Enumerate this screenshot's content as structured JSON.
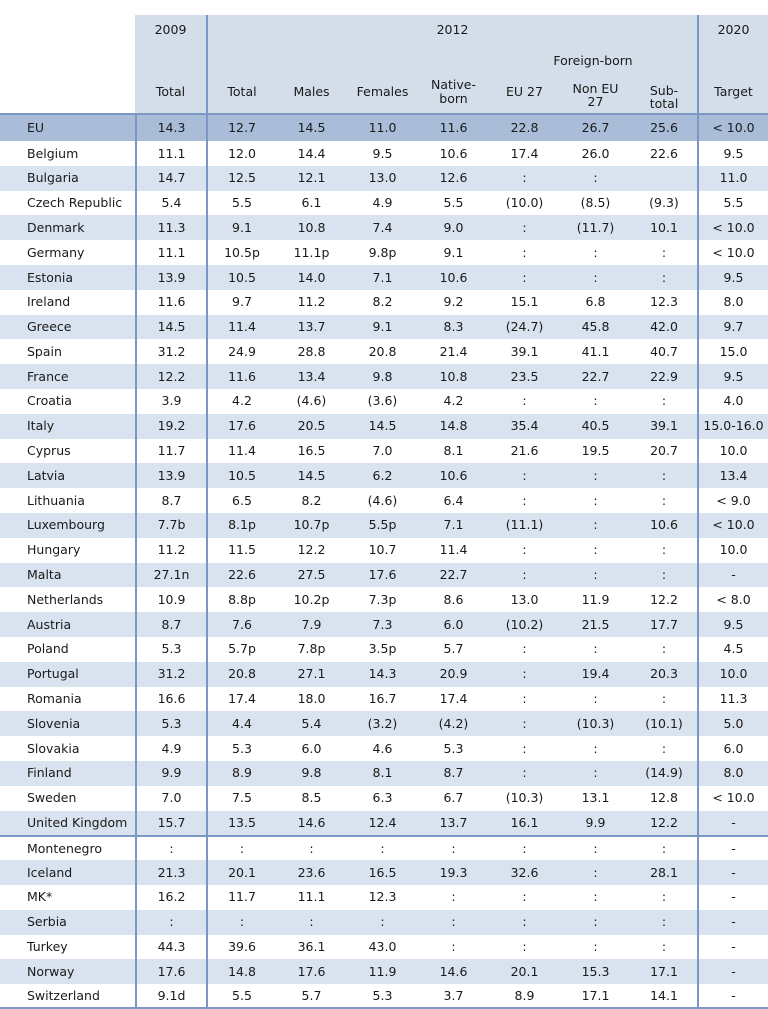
{
  "headers": {
    "year_2009": "2009",
    "year_2012": "2012",
    "year_2020": "2020",
    "foreign_born": "Foreign-born",
    "cols": [
      "Total",
      "Total",
      "Males",
      "Females",
      "Native-\nborn",
      "EU 27",
      "Non EU\n27",
      "Sub-\ntotal",
      "Target"
    ]
  },
  "rows": [
    {
      "country": "EU",
      "v": [
        "14.3",
        "12.7",
        "14.5",
        "11.0",
        "11.6",
        "22.8",
        "26.7",
        "25.6",
        "< 10.0"
      ]
    },
    {
      "country": "Belgium",
      "v": [
        "11.1",
        "12.0",
        "14.4",
        "9.5",
        "10.6",
        "17.4",
        "26.0",
        "22.6",
        "9.5"
      ]
    },
    {
      "country": "Bulgaria",
      "v": [
        "14.7",
        "12.5",
        "12.1",
        "13.0",
        "12.6",
        ":",
        ":",
        "",
        "11.0"
      ]
    },
    {
      "country": "Czech Republic",
      "v": [
        "5.4",
        "5.5",
        "6.1",
        "4.9",
        "5.5",
        "(10.0)",
        "(8.5)",
        "(9.3)",
        "5.5"
      ]
    },
    {
      "country": "Denmark",
      "v": [
        "11.3",
        "9.1",
        "10.8",
        "7.4",
        "9.0",
        ":",
        "(11.7)",
        "10.1",
        "< 10.0"
      ]
    },
    {
      "country": "Germany",
      "v": [
        "11.1",
        "10.5p",
        "11.1p",
        "9.8p",
        "9.1",
        ":",
        ":",
        ":",
        "< 10.0"
      ]
    },
    {
      "country": "Estonia",
      "v": [
        "13.9",
        "10.5",
        "14.0",
        "7.1",
        "10.6",
        ":",
        ":",
        ":",
        "9.5"
      ]
    },
    {
      "country": "Ireland",
      "v": [
        "11.6",
        "9.7",
        "11.2",
        "8.2",
        "9.2",
        "15.1",
        "6.8",
        "12.3",
        "8.0"
      ]
    },
    {
      "country": "Greece",
      "v": [
        "14.5",
        "11.4",
        "13.7",
        "9.1",
        "8.3",
        "(24.7)",
        "45.8",
        "42.0",
        "9.7"
      ]
    },
    {
      "country": "Spain",
      "v": [
        "31.2",
        "24.9",
        "28.8",
        "20.8",
        "21.4",
        "39.1",
        "41.1",
        "40.7",
        "15.0"
      ]
    },
    {
      "country": "France",
      "v": [
        "12.2",
        "11.6",
        "13.4",
        "9.8",
        "10.8",
        "23.5",
        "22.7",
        "22.9",
        "9.5"
      ]
    },
    {
      "country": "Croatia",
      "v": [
        "3.9",
        "4.2",
        "(4.6)",
        "(3.6)",
        "4.2",
        ":",
        ":",
        ":",
        "4.0"
      ]
    },
    {
      "country": "Italy",
      "v": [
        "19.2",
        "17.6",
        "20.5",
        "14.5",
        "14.8",
        "35.4",
        "40.5",
        "39.1",
        "15.0-16.0"
      ]
    },
    {
      "country": "Cyprus",
      "v": [
        "11.7",
        "11.4",
        "16.5",
        "7.0",
        "8.1",
        "21.6",
        "19.5",
        "20.7",
        "10.0"
      ]
    },
    {
      "country": "Latvia",
      "v": [
        "13.9",
        "10.5",
        "14.5",
        "6.2",
        "10.6",
        ":",
        ":",
        ":",
        "13.4"
      ]
    },
    {
      "country": "Lithuania",
      "v": [
        "8.7",
        "6.5",
        "8.2",
        "(4.6)",
        "6.4",
        ":",
        ":",
        ":",
        "< 9.0"
      ]
    },
    {
      "country": "Luxembourg",
      "v": [
        "7.7b",
        "8.1p",
        "10.7p",
        "5.5p",
        "7.1",
        "(11.1)",
        ":",
        "10.6",
        "< 10.0"
      ]
    },
    {
      "country": "Hungary",
      "v": [
        "11.2",
        "11.5",
        "12.2",
        "10.7",
        "11.4",
        ":",
        ":",
        ":",
        "10.0"
      ]
    },
    {
      "country": "Malta",
      "v": [
        "27.1n",
        "22.6",
        "27.5",
        "17.6",
        "22.7",
        ":",
        ":",
        ":",
        "-"
      ]
    },
    {
      "country": "Netherlands",
      "v": [
        "10.9",
        "8.8p",
        "10.2p",
        "7.3p",
        "8.6",
        "13.0",
        "11.9",
        "12.2",
        "< 8.0"
      ]
    },
    {
      "country": "Austria",
      "v": [
        "8.7",
        "7.6",
        "7.9",
        "7.3",
        "6.0",
        "(10.2)",
        "21.5",
        "17.7",
        "9.5"
      ]
    },
    {
      "country": "Poland",
      "v": [
        "5.3",
        "5.7p",
        "7.8p",
        "3.5p",
        "5.7",
        ":",
        ":",
        ":",
        "4.5"
      ]
    },
    {
      "country": "Portugal",
      "v": [
        "31.2",
        "20.8",
        "27.1",
        "14.3",
        "20.9",
        ":",
        "19.4",
        "20.3",
        "10.0"
      ]
    },
    {
      "country": "Romania",
      "v": [
        "16.6",
        "17.4",
        "18.0",
        "16.7",
        "17.4",
        ":",
        ":",
        ":",
        "11.3"
      ]
    },
    {
      "country": "Slovenia",
      "v": [
        "5.3",
        "4.4",
        "5.4",
        "(3.2)",
        "(4.2)",
        ":",
        "(10.3)",
        "(10.1)",
        "5.0"
      ]
    },
    {
      "country": "Slovakia",
      "v": [
        "4.9",
        "5.3",
        "6.0",
        "4.6",
        "5.3",
        ":",
        ":",
        ":",
        "6.0"
      ]
    },
    {
      "country": "Finland",
      "v": [
        "9.9",
        "8.9",
        "9.8",
        "8.1",
        "8.7",
        ":",
        ":",
        "(14.9)",
        "8.0"
      ]
    },
    {
      "country": "Sweden",
      "v": [
        "7.0",
        "7.5",
        "8.5",
        "6.3",
        "6.7",
        "(10.3)",
        "13.1",
        "12.8",
        "< 10.0"
      ]
    },
    {
      "country": "United Kingdom",
      "v": [
        "15.7",
        "13.5",
        "14.6",
        "12.4",
        "13.7",
        "16.1",
        "9.9",
        "12.2",
        "-"
      ]
    },
    {
      "country": "Montenegro",
      "v": [
        ":",
        ":",
        ":",
        ":",
        ":",
        ":",
        ":",
        ":",
        "-"
      ]
    },
    {
      "country": "Iceland",
      "v": [
        "21.3",
        "20.1",
        "23.6",
        "16.5",
        "19.3",
        "32.6",
        ":",
        "28.1",
        "-"
      ]
    },
    {
      "country": "MK*",
      "v": [
        "16.2",
        "11.7",
        "11.1",
        "12.3",
        ":",
        ":",
        ":",
        ":",
        "-"
      ]
    },
    {
      "country": "Serbia",
      "v": [
        ":",
        ":",
        ":",
        ":",
        ":",
        ":",
        ":",
        ":",
        "-"
      ]
    },
    {
      "country": "Turkey",
      "v": [
        "44.3",
        "39.6",
        "36.1",
        "43.0",
        ":",
        ":",
        ":",
        ":",
        "-"
      ]
    },
    {
      "country": "Norway",
      "v": [
        "17.6",
        "14.8",
        "17.6",
        "11.9",
        "14.6",
        "20.1",
        "15.3",
        "17.1",
        "-"
      ]
    },
    {
      "country": "Switzerland",
      "v": [
        "9.1d",
        "5.5",
        "5.7",
        "5.3",
        "3.7",
        "8.9",
        "17.1",
        "14.1",
        "-"
      ]
    }
  ]
}
